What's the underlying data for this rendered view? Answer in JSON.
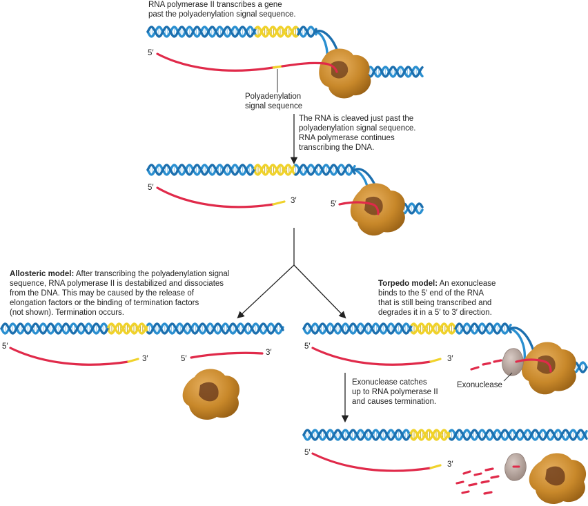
{
  "colors": {
    "dna": "#2a8fd0",
    "dna_dark": "#1c6fae",
    "signal": "#f0d22a",
    "rna": "#e02a4a",
    "rna_light": "#f07088",
    "pol": "#c8882a",
    "pol_dark": "#6a3a1a",
    "exo": "#b8a6a0"
  },
  "step1": {
    "caption_line1": "RNA polymerase II transcribes a gene",
    "caption_line2": "past the polyadenylation signal sequence."
  },
  "signal_label": {
    "line1": "Polyadenylation",
    "line2": "signal sequence"
  },
  "step2": {
    "line1": "The RNA is cleaved just past the",
    "line2": "polyadenylation signal sequence.",
    "line3": "RNA polymerase continues",
    "line4": "transcribing the DNA."
  },
  "allosteric": {
    "title": "Allosteric model:",
    "line1": " After transcribing the polyadenylation signal",
    "line2": "sequence, RNA polymerase II is destabilized and dissociates",
    "line3": "from the DNA. This may be caused by the release of",
    "line4": "elongation factors or the binding of termination factors",
    "line5": "(not shown). Termination occurs."
  },
  "torpedo": {
    "title": "Torpedo model:",
    "line1": " An exonuclease",
    "line2": "binds to the 5′ end of the RNA",
    "line3": "that is still being transcribed and",
    "line4": "degrades it in a 5′ to 3′ direction."
  },
  "exo_label": "Exonuclease",
  "catch": {
    "line1": "Exonuclease catches",
    "line2": "up to RNA polymerase II",
    "line3": "and causes termination."
  },
  "five": "5′",
  "three": "3′"
}
